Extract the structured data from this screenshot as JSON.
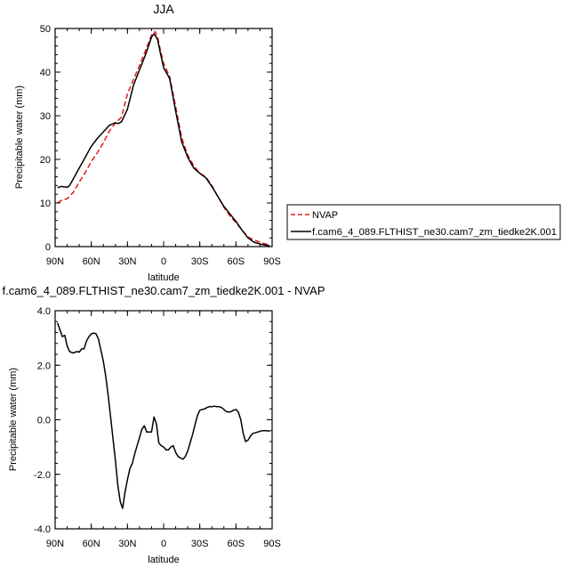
{
  "chart_data": [
    {
      "type": "line",
      "title": "JJA",
      "xlabel": "latitude",
      "ylabel": "Precipitable water (mm)",
      "xlim": [
        90,
        -90
      ],
      "ylim": [
        0,
        50
      ],
      "x_tick_values": [
        90,
        60,
        30,
        0,
        -30,
        -60,
        -90
      ],
      "x_tick_labels": [
        "90N",
        "60N",
        "30N",
        "0",
        "30S",
        "60S",
        "90S"
      ],
      "y_tick_values": [
        0,
        10,
        20,
        30,
        40,
        50
      ],
      "y_tick_labels": [
        "0",
        "10",
        "20",
        "30",
        "40",
        "50"
      ],
      "grid": false,
      "legend_position": "outside-right",
      "series": [
        {
          "name": "NVAP",
          "color": "#e41a1c",
          "dash": "dashed",
          "x": [
            88,
            85,
            80,
            75,
            70,
            65,
            60,
            55,
            50,
            45,
            40,
            35,
            30,
            25,
            20,
            15,
            10,
            7,
            5,
            3,
            0,
            -5,
            -10,
            -15,
            -20,
            -25,
            -30,
            -35,
            -40,
            -45,
            -50,
            -55,
            -60,
            -65,
            -70,
            -75,
            -80,
            -85,
            -88
          ],
          "y": [
            10.0,
            10.6,
            11.0,
            12.4,
            14.8,
            17.0,
            19.5,
            21.5,
            23.8,
            26.5,
            28.3,
            29.7,
            35.0,
            38.3,
            41.5,
            45.0,
            48.5,
            49.3,
            48.0,
            45.5,
            42.0,
            39.0,
            32.0,
            25.0,
            21.0,
            18.5,
            16.8,
            16.0,
            14.0,
            11.5,
            9.0,
            7.0,
            5.5,
            3.8,
            2.2,
            1.5,
            1.0,
            0.6,
            0.3
          ]
        },
        {
          "name": "f.cam6_4_089.FLTHIST_ne30.cam7_zm_tiedke2K.001",
          "color": "#000000",
          "dash": "solid",
          "x": [
            88,
            85,
            80,
            78,
            75,
            70,
            65,
            60,
            55,
            50,
            45,
            40,
            38,
            35,
            30,
            25,
            20,
            15,
            10,
            8,
            5,
            3,
            0,
            -5,
            -10,
            -15,
            -20,
            -25,
            -30,
            -35,
            -40,
            -45,
            -50,
            -55,
            -60,
            -65,
            -70,
            -75,
            -80,
            -85,
            -88
          ],
          "y": [
            13.5,
            13.8,
            13.6,
            14.0,
            15.5,
            18.0,
            20.5,
            23.0,
            24.8,
            26.3,
            27.8,
            28.4,
            28.2,
            28.6,
            31.5,
            37.0,
            40.5,
            44.0,
            48.0,
            48.8,
            47.5,
            44.8,
            41.0,
            38.5,
            31.0,
            24.0,
            20.5,
            18.0,
            16.8,
            15.8,
            13.8,
            11.5,
            9.2,
            7.5,
            5.8,
            3.8,
            2.0,
            1.0,
            0.6,
            0.3,
            0.2
          ]
        }
      ]
    },
    {
      "type": "line",
      "title": "f.cam6_4_089.FLTHIST_ne30.cam7_zm_tiedke2K.001 - NVAP",
      "xlabel": "latitude",
      "ylabel": "Precipitable water (mm)",
      "xlim": [
        90,
        -90
      ],
      "ylim": [
        -4.0,
        4.0
      ],
      "x_tick_values": [
        90,
        60,
        30,
        0,
        -30,
        -60,
        -90
      ],
      "x_tick_labels": [
        "90N",
        "60N",
        "30N",
        "0",
        "30S",
        "60S",
        "90S"
      ],
      "y_tick_values": [
        -4,
        -2,
        0,
        2,
        4
      ],
      "y_tick_labels": [
        "-4.0",
        "-2.0",
        "0.0",
        "2.0",
        "4.0"
      ],
      "grid": false,
      "series": [
        {
          "color": "#000000",
          "dash": "solid",
          "x": [
            88,
            86,
            84,
            82,
            80,
            78,
            75,
            72,
            70,
            68,
            66,
            64,
            62,
            60,
            58,
            56,
            54,
            52,
            50,
            48,
            46,
            44,
            42,
            40,
            38,
            36,
            34,
            32,
            30,
            28,
            26,
            24,
            22,
            20,
            18,
            16,
            14,
            12,
            10,
            8,
            6,
            4,
            2,
            0,
            -2,
            -4,
            -6,
            -8,
            -10,
            -12,
            -14,
            -16,
            -18,
            -20,
            -22,
            -24,
            -26,
            -28,
            -30,
            -32,
            -34,
            -36,
            -38,
            -40,
            -42,
            -44,
            -46,
            -48,
            -50,
            -52,
            -54,
            -56,
            -58,
            -60,
            -62,
            -64,
            -66,
            -68,
            -70,
            -72,
            -74,
            -76,
            -78,
            -80,
            -82,
            -84,
            -86,
            -88
          ],
          "y": [
            3.55,
            3.3,
            3.05,
            3.1,
            2.7,
            2.5,
            2.45,
            2.5,
            2.48,
            2.6,
            2.6,
            2.88,
            3.05,
            3.15,
            3.18,
            3.15,
            2.95,
            2.55,
            2.15,
            1.6,
            0.9,
            0.1,
            -0.7,
            -1.5,
            -2.4,
            -3.0,
            -3.25,
            -2.65,
            -2.2,
            -1.8,
            -1.6,
            -1.25,
            -0.95,
            -0.65,
            -0.35,
            -0.22,
            -0.45,
            -0.45,
            -0.45,
            0.1,
            -0.15,
            -0.85,
            -0.95,
            -1.0,
            -1.1,
            -1.1,
            -1.0,
            -0.95,
            -1.2,
            -1.35,
            -1.4,
            -1.45,
            -1.35,
            -1.15,
            -0.85,
            -0.55,
            -0.2,
            0.15,
            0.35,
            0.38,
            0.4,
            0.45,
            0.48,
            0.48,
            0.5,
            0.48,
            0.48,
            0.45,
            0.38,
            0.3,
            0.28,
            0.3,
            0.35,
            0.38,
            0.28,
            0.0,
            -0.5,
            -0.8,
            -0.75,
            -0.6,
            -0.5,
            -0.48,
            -0.45,
            -0.42,
            -0.4,
            -0.4,
            -0.4,
            -0.42
          ]
        }
      ]
    }
  ]
}
